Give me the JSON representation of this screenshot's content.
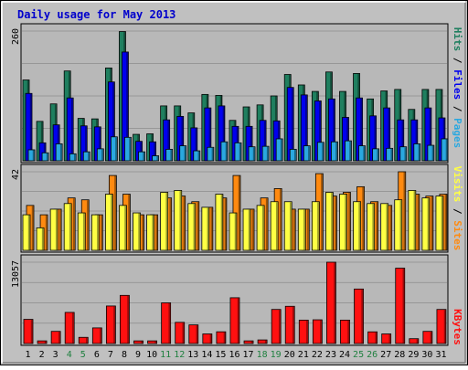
{
  "title": "Daily usage for May 2013",
  "colors": {
    "frame_bg": "#c0c0c0",
    "panel_bg": "#b8b8b8",
    "title": "#0000cc",
    "hits": "#1f7f5f",
    "files": "#0000ee",
    "pages": "#2aa8e0",
    "visits": "#ffff44",
    "sites": "#ff8a10",
    "kbytes": "#ff1010",
    "weekend_label": "#208040",
    "weekday_label": "#000000"
  },
  "chart_data": [
    {
      "type": "bar",
      "panel": "hits",
      "ymax_label": "260",
      "ymax": 260,
      "categories": [
        "1",
        "2",
        "3",
        "4",
        "5",
        "6",
        "7",
        "8",
        "9",
        "10",
        "11",
        "12",
        "13",
        "14",
        "15",
        "16",
        "17",
        "18",
        "19",
        "20",
        "21",
        "22",
        "23",
        "24",
        "25",
        "26",
        "27",
        "28",
        "29",
        "30",
        "31"
      ],
      "weekend_days": [
        "4",
        "5",
        "11",
        "12",
        "18",
        "19",
        "25",
        "26"
      ],
      "series": [
        {
          "name": "Hits",
          "values": [
            162,
            79,
            114,
            180,
            85,
            84,
            186,
            259,
            53,
            54,
            110,
            110,
            96,
            133,
            131,
            81,
            108,
            112,
            130,
            173,
            152,
            139,
            178,
            139,
            175,
            124,
            140,
            143,
            103,
            143,
            143
          ]
        },
        {
          "name": "Files",
          "values": [
            135,
            36,
            72,
            126,
            70,
            68,
            158,
            218,
            39,
            38,
            82,
            89,
            66,
            106,
            110,
            69,
            69,
            81,
            80,
            147,
            132,
            120,
            124,
            87,
            126,
            90,
            106,
            82,
            82,
            106,
            86
          ]
        },
        {
          "name": "Pages",
          "values": [
            22,
            16,
            34,
            14,
            18,
            24,
            48,
            47,
            18,
            10,
            23,
            30,
            20,
            27,
            38,
            36,
            28,
            29,
            44,
            23,
            30,
            37,
            38,
            40,
            30,
            24,
            25,
            28,
            34,
            31,
            44
          ]
        }
      ]
    },
    {
      "type": "bar",
      "panel": "visits",
      "ymax_label": "42",
      "ymax": 42,
      "categories": [
        "1",
        "2",
        "3",
        "4",
        "5",
        "6",
        "7",
        "8",
        "9",
        "10",
        "11",
        "12",
        "13",
        "14",
        "15",
        "16",
        "17",
        "18",
        "19",
        "20",
        "21",
        "22",
        "23",
        "24",
        "25",
        "26",
        "27",
        "28",
        "29",
        "30",
        "31"
      ],
      "series": [
        {
          "name": "Visits",
          "values": [
            19,
            12,
            22,
            25,
            20,
            19,
            30,
            24,
            20,
            19,
            31,
            32,
            25,
            23,
            30,
            20,
            22,
            24,
            26,
            26,
            22,
            26,
            31,
            30,
            26,
            25,
            25,
            27,
            32,
            28,
            29
          ]
        },
        {
          "name": "Sites",
          "values": [
            24,
            19,
            22,
            28,
            27,
            19,
            40,
            30,
            19,
            19,
            28,
            29,
            26,
            23,
            28,
            40,
            22,
            28,
            33,
            22,
            22,
            41,
            29,
            31,
            34,
            26,
            24,
            42,
            30,
            29,
            30
          ]
        }
      ]
    },
    {
      "type": "bar",
      "panel": "kbytes",
      "ymax_label": "13057",
      "ymax": 13057,
      "categories": [
        "1",
        "2",
        "3",
        "4",
        "5",
        "6",
        "7",
        "8",
        "9",
        "10",
        "11",
        "12",
        "13",
        "14",
        "15",
        "16",
        "17",
        "18",
        "19",
        "20",
        "21",
        "22",
        "23",
        "24",
        "25",
        "26",
        "27",
        "28",
        "29",
        "30",
        "31"
      ],
      "series": [
        {
          "name": "KBytes",
          "values": [
            3880,
            424,
            1950,
            4995,
            990,
            2508,
            6025,
            7730,
            424,
            424,
            6530,
            3400,
            2989,
            1540,
            1883,
            7350,
            424,
            575,
            5471,
            5976,
            3756,
            3808,
            13057,
            3756,
            8750,
            1875,
            1540,
            12100,
            776,
            1950,
            5471
          ]
        }
      ]
    }
  ]
}
